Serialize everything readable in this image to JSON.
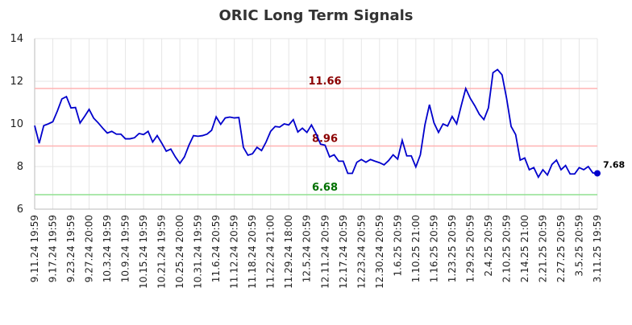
{
  "chart_data": {
    "type": "line",
    "title": "ORIC Long Term Signals",
    "categories": [
      "9.11.24 19:59",
      null,
      null,
      null,
      "9.17.24 19:59",
      null,
      null,
      null,
      "9.23.24 19:59",
      null,
      null,
      null,
      "9.27.24 20:00",
      null,
      null,
      null,
      "10.3.24 19:59",
      null,
      null,
      null,
      "10.9.24 19:59",
      null,
      null,
      null,
      "10.15.24 19:59",
      null,
      null,
      null,
      "10.21.24 19:59",
      null,
      null,
      null,
      "10.25.24 20:00",
      null,
      null,
      null,
      "10.31.24 19:59",
      null,
      null,
      null,
      "11.6.24 20:59",
      null,
      null,
      null,
      "11.12.24 20:59",
      null,
      null,
      null,
      "11.18.24 20:59",
      null,
      null,
      null,
      "11.22.24 21:00",
      null,
      null,
      null,
      "11.29.24 18:00",
      null,
      null,
      null,
      "12.5.24 20:59",
      null,
      null,
      null,
      "12.11.24 20:59",
      null,
      null,
      null,
      "12.17.24 20:59",
      null,
      null,
      null,
      "12.23.24 20:59",
      null,
      null,
      null,
      "12.30.24 20:59",
      null,
      null,
      null,
      "1.6.25 20:59",
      null,
      null,
      null,
      "1.10.25 21:00",
      null,
      null,
      null,
      "1.16.25 20:59",
      null,
      null,
      null,
      "1.23.25 20:59",
      null,
      null,
      null,
      "1.29.25 20:59",
      null,
      null,
      null,
      "2.4.25 20:59",
      null,
      null,
      null,
      "2.10.25 20:59",
      null,
      null,
      null,
      "2.14.25 21:00",
      null,
      null,
      null,
      "2.21.25 20:59",
      null,
      null,
      null,
      "2.27.25 20:59",
      null,
      null,
      null,
      "3.5.25 20:59",
      null,
      null,
      null,
      "3.11.25 19:59"
    ],
    "values": [
      9.92,
      9.09,
      9.92,
      10.0,
      10.1,
      10.6,
      11.17,
      11.28,
      10.75,
      10.77,
      10.04,
      10.35,
      10.68,
      10.27,
      10.05,
      9.8,
      9.57,
      9.65,
      9.52,
      9.52,
      9.3,
      9.3,
      9.35,
      9.55,
      9.5,
      9.65,
      9.15,
      9.45,
      9.1,
      8.72,
      8.82,
      8.45,
      8.15,
      8.45,
      9.0,
      9.45,
      9.42,
      9.45,
      9.52,
      9.7,
      10.33,
      9.98,
      10.28,
      10.32,
      10.28,
      10.3,
      8.9,
      8.53,
      8.6,
      8.9,
      8.75,
      9.15,
      9.65,
      9.88,
      9.85,
      10.0,
      9.95,
      10.2,
      9.62,
      9.8,
      9.6,
      9.95,
      9.55,
      9.05,
      9.0,
      8.45,
      8.55,
      8.25,
      8.25,
      7.68,
      7.68,
      8.2,
      8.33,
      8.2,
      8.33,
      8.25,
      8.18,
      8.08,
      8.28,
      8.55,
      8.35,
      9.23,
      8.5,
      8.5,
      7.98,
      8.55,
      9.95,
      10.9,
      10.05,
      9.6,
      10.0,
      9.9,
      10.35,
      10.0,
      10.85,
      11.66,
      11.2,
      10.85,
      10.45,
      10.2,
      10.75,
      12.4,
      12.55,
      12.3,
      11.2,
      9.88,
      9.5,
      8.3,
      8.4,
      7.85,
      7.95,
      7.5,
      7.85,
      7.6,
      8.1,
      8.3,
      7.85,
      8.05,
      7.65,
      7.65,
      7.95,
      7.85,
      8.0,
      7.7,
      7.68
    ],
    "color": "#0000cc",
    "ylim": [
      6,
      14
    ],
    "yticks": [
      6,
      8,
      10,
      12,
      14
    ],
    "grid": true,
    "hlines": [
      {
        "value": 11.66,
        "color": "#ffb3b3",
        "label_color": "#8b0000"
      },
      {
        "value": 8.96,
        "color": "#ffb3b3",
        "label_color": "#8b0000"
      },
      {
        "value": 6.68,
        "color": "#90e090",
        "label_color": "#007000"
      }
    ]
  }
}
